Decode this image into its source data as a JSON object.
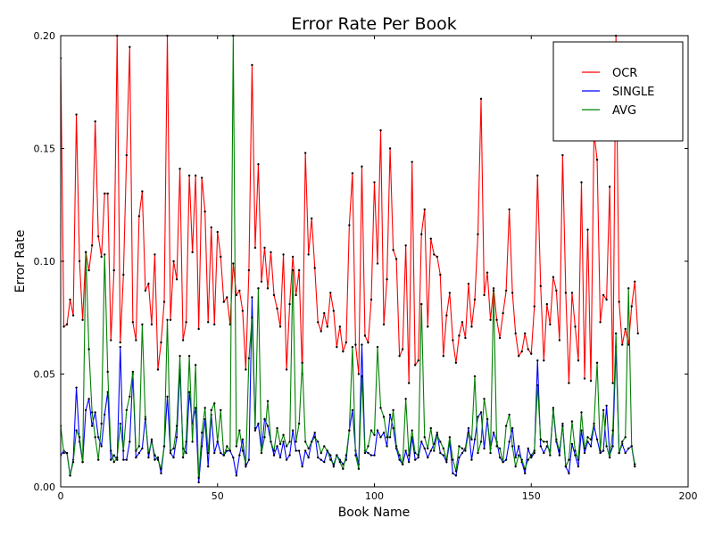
{
  "chart_data": {
    "type": "line",
    "title": "Error Rate Per Book",
    "xlabel": "Book Name",
    "ylabel": "Error Rate",
    "xlim": [
      0,
      200
    ],
    "ylim": [
      0,
      0.2
    ],
    "x_ticks": [
      "0",
      "50",
      "100",
      "150",
      "200"
    ],
    "y_ticks": [
      "0.00",
      "0.05",
      "0.10",
      "0.15",
      "0.20"
    ],
    "grid": false,
    "legend_position": "top-right",
    "series": [
      {
        "name": "OCR",
        "color": "#ff0000",
        "values": [
          0.19,
          0.071,
          0.072,
          0.083,
          0.076,
          0.165,
          0.1,
          0.074,
          0.104,
          0.096,
          0.107,
          0.162,
          0.111,
          0.102,
          0.13,
          0.13,
          0.065,
          0.096,
          0.2,
          0.064,
          0.094,
          0.147,
          0.195,
          0.073,
          0.065,
          0.12,
          0.131,
          0.087,
          0.09,
          0.072,
          0.103,
          0.052,
          0.064,
          0.082,
          0.2,
          0.074,
          0.1,
          0.092,
          0.141,
          0.065,
          0.073,
          0.138,
          0.104,
          0.138,
          0.07,
          0.137,
          0.122,
          0.073,
          0.115,
          0.072,
          0.113,
          0.102,
          0.082,
          0.084,
          0.072,
          0.099,
          0.085,
          0.087,
          0.078,
          0.052,
          0.096,
          0.187,
          0.106,
          0.143,
          0.091,
          0.106,
          0.088,
          0.104,
          0.085,
          0.079,
          0.071,
          0.103,
          0.052,
          0.081,
          0.102,
          0.085,
          0.096,
          0.05,
          0.148,
          0.103,
          0.119,
          0.097,
          0.073,
          0.069,
          0.077,
          0.071,
          0.086,
          0.078,
          0.062,
          0.071,
          0.06,
          0.064,
          0.116,
          0.139,
          0.063,
          0.05,
          0.142,
          0.067,
          0.064,
          0.083,
          0.135,
          0.099,
          0.158,
          0.072,
          0.092,
          0.15,
          0.105,
          0.101,
          0.058,
          0.061,
          0.107,
          0.046,
          0.144,
          0.054,
          0.056,
          0.112,
          0.123,
          0.071,
          0.11,
          0.103,
          0.102,
          0.094,
          0.058,
          0.076,
          0.086,
          0.065,
          0.055,
          0.067,
          0.073,
          0.066,
          0.09,
          0.071,
          0.083,
          0.112,
          0.172,
          0.085,
          0.095,
          0.074,
          0.088,
          0.074,
          0.066,
          0.077,
          0.087,
          0.123,
          0.086,
          0.068,
          0.058,
          0.06,
          0.068,
          0.061,
          0.059,
          0.08,
          0.138,
          0.089,
          0.056,
          0.081,
          0.072,
          0.093,
          0.087,
          0.065,
          0.147,
          0.086,
          0.046,
          0.086,
          0.071,
          0.056,
          0.135,
          0.048,
          0.114,
          0.047,
          0.157,
          0.145,
          0.073,
          0.085,
          0.083,
          0.133,
          0.046,
          0.2,
          0.082,
          0.063,
          0.07,
          0.063,
          0.08,
          0.091,
          0.068
        ]
      },
      {
        "name": "SINGLE",
        "color": "#0000ff",
        "values": [
          0.014,
          0.016,
          0.015,
          0.005,
          0.012,
          0.044,
          0.02,
          0.011,
          0.034,
          0.039,
          0.027,
          0.033,
          0.022,
          0.018,
          0.032,
          0.042,
          0.012,
          0.014,
          0.012,
          0.062,
          0.012,
          0.012,
          0.02,
          0.05,
          0.013,
          0.015,
          0.017,
          0.031,
          0.013,
          0.021,
          0.012,
          0.013,
          0.006,
          0.018,
          0.04,
          0.015,
          0.013,
          0.022,
          0.052,
          0.017,
          0.015,
          0.042,
          0.028,
          0.035,
          0.002,
          0.018,
          0.03,
          0.009,
          0.032,
          0.015,
          0.02,
          0.015,
          0.014,
          0.016,
          0.016,
          0.013,
          0.005,
          0.014,
          0.021,
          0.009,
          0.012,
          0.084,
          0.025,
          0.028,
          0.016,
          0.03,
          0.027,
          0.02,
          0.014,
          0.018,
          0.013,
          0.02,
          0.012,
          0.014,
          0.025,
          0.016,
          0.016,
          0.009,
          0.016,
          0.013,
          0.02,
          0.024,
          0.013,
          0.012,
          0.011,
          0.016,
          0.014,
          0.009,
          0.014,
          0.012,
          0.01,
          0.012,
          0.025,
          0.034,
          0.016,
          0.01,
          0.063,
          0.016,
          0.015,
          0.014,
          0.014,
          0.025,
          0.022,
          0.024,
          0.018,
          0.032,
          0.026,
          0.017,
          0.012,
          0.01,
          0.016,
          0.011,
          0.022,
          0.012,
          0.013,
          0.02,
          0.017,
          0.013,
          0.016,
          0.019,
          0.024,
          0.015,
          0.014,
          0.011,
          0.02,
          0.006,
          0.005,
          0.013,
          0.015,
          0.017,
          0.026,
          0.012,
          0.021,
          0.031,
          0.033,
          0.017,
          0.03,
          0.017,
          0.024,
          0.02,
          0.013,
          0.011,
          0.012,
          0.02,
          0.026,
          0.013,
          0.018,
          0.011,
          0.006,
          0.017,
          0.013,
          0.015,
          0.056,
          0.018,
          0.015,
          0.018,
          0.016,
          0.034,
          0.02,
          0.014,
          0.028,
          0.009,
          0.006,
          0.019,
          0.014,
          0.009,
          0.025,
          0.015,
          0.02,
          0.018,
          0.027,
          0.021,
          0.015,
          0.016,
          0.036,
          0.014,
          0.018,
          0.062,
          0.015,
          0.019,
          0.015,
          0.017,
          0.018,
          0.009
        ]
      },
      {
        "name": "AVG",
        "color": "#008000",
        "values": [
          0.027,
          0.015,
          0.015,
          0.005,
          0.011,
          0.025,
          0.022,
          0.011,
          0.104,
          0.061,
          0.033,
          0.022,
          0.012,
          0.028,
          0.103,
          0.051,
          0.016,
          0.011,
          0.013,
          0.028,
          0.016,
          0.034,
          0.04,
          0.051,
          0.016,
          0.018,
          0.072,
          0.03,
          0.015,
          0.02,
          0.014,
          0.012,
          0.008,
          0.018,
          0.074,
          0.016,
          0.017,
          0.027,
          0.058,
          0.013,
          0.02,
          0.058,
          0.02,
          0.054,
          0.004,
          0.024,
          0.035,
          0.015,
          0.034,
          0.037,
          0.02,
          0.034,
          0.014,
          0.018,
          0.016,
          0.2,
          0.018,
          0.025,
          0.016,
          0.01,
          0.057,
          0.075,
          0.026,
          0.088,
          0.015,
          0.022,
          0.038,
          0.02,
          0.016,
          0.026,
          0.019,
          0.023,
          0.018,
          0.02,
          0.096,
          0.02,
          0.028,
          0.055,
          0.02,
          0.017,
          0.02,
          0.022,
          0.02,
          0.015,
          0.018,
          0.016,
          0.012,
          0.01,
          0.014,
          0.011,
          0.008,
          0.014,
          0.025,
          0.062,
          0.014,
          0.008,
          0.049,
          0.015,
          0.018,
          0.025,
          0.023,
          0.062,
          0.035,
          0.031,
          0.022,
          0.022,
          0.034,
          0.018,
          0.014,
          0.01,
          0.039,
          0.014,
          0.025,
          0.015,
          0.014,
          0.081,
          0.022,
          0.017,
          0.026,
          0.016,
          0.023,
          0.02,
          0.017,
          0.012,
          0.022,
          0.012,
          0.007,
          0.018,
          0.017,
          0.016,
          0.024,
          0.021,
          0.049,
          0.015,
          0.02,
          0.039,
          0.03,
          0.015,
          0.087,
          0.018,
          0.017,
          0.011,
          0.027,
          0.032,
          0.018,
          0.009,
          0.014,
          0.012,
          0.008,
          0.012,
          0.014,
          0.016,
          0.045,
          0.021,
          0.02,
          0.02,
          0.014,
          0.035,
          0.021,
          0.016,
          0.027,
          0.009,
          0.012,
          0.029,
          0.016,
          0.012,
          0.033,
          0.017,
          0.022,
          0.021,
          0.028,
          0.055,
          0.016,
          0.034,
          0.018,
          0.013,
          0.025,
          0.068,
          0.015,
          0.02,
          0.022,
          0.088,
          0.018,
          0.01
        ]
      }
    ]
  }
}
